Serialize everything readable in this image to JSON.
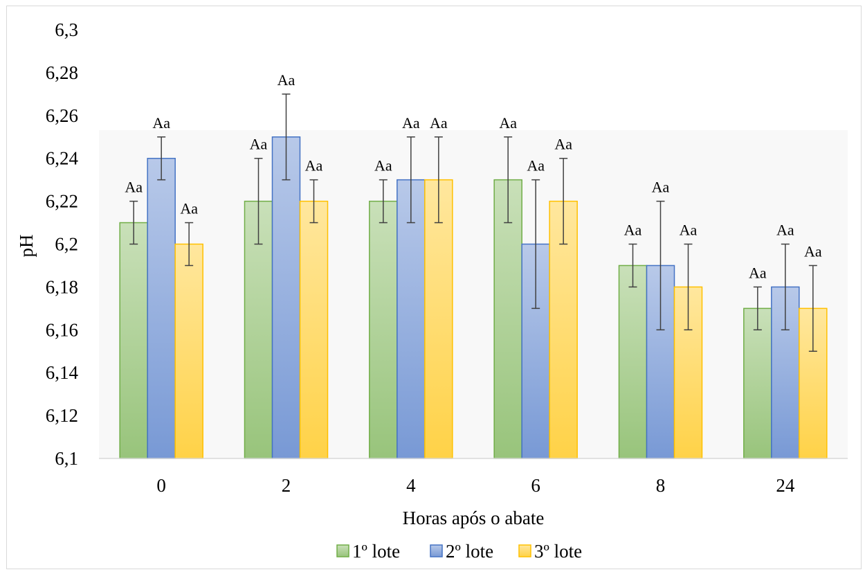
{
  "chart_data": {
    "type": "bar",
    "title": "",
    "xlabel": "Horas após o abate",
    "ylabel": "pH",
    "categories": [
      "0",
      "2",
      "4",
      "6",
      "8",
      "24"
    ],
    "ylim": [
      6.1,
      6.3
    ],
    "yticks": [
      6.1,
      6.12,
      6.14,
      6.16,
      6.18,
      6.2,
      6.22,
      6.24,
      6.26,
      6.28,
      6.3
    ],
    "ytick_labels": [
      "6,1",
      "6,12",
      "6,14",
      "6,16",
      "6,18",
      "6,2",
      "6,22",
      "6,24",
      "6,26",
      "6,28",
      "6,3"
    ],
    "grid": false,
    "legend_position": "bottom",
    "series": [
      {
        "name": "1º lote",
        "color": "#70ad47",
        "values": [
          6.21,
          6.22,
          6.22,
          6.23,
          6.19,
          6.17
        ],
        "error_low": [
          6.2,
          6.2,
          6.21,
          6.21,
          6.18,
          6.16
        ],
        "error_high": [
          6.22,
          6.24,
          6.23,
          6.25,
          6.2,
          6.18
        ],
        "labels": [
          "Aa",
          "Aa",
          "Aa",
          "Aa",
          "Aa",
          "Aa"
        ]
      },
      {
        "name": "2º lote",
        "color": "#4472c4",
        "values": [
          6.24,
          6.25,
          6.23,
          6.2,
          6.19,
          6.18
        ],
        "error_low": [
          6.23,
          6.23,
          6.21,
          6.17,
          6.16,
          6.16
        ],
        "error_high": [
          6.25,
          6.27,
          6.25,
          6.23,
          6.22,
          6.2
        ],
        "labels": [
          "Aa",
          "Aa",
          "Aa",
          "Aa",
          "Aa",
          "Aa"
        ]
      },
      {
        "name": "3º lote",
        "color": "#ffc000",
        "values": [
          6.2,
          6.22,
          6.23,
          6.22,
          6.18,
          6.17
        ],
        "error_low": [
          6.19,
          6.21,
          6.21,
          6.2,
          6.16,
          6.15
        ],
        "error_high": [
          6.21,
          6.23,
          6.25,
          6.24,
          6.2,
          6.19
        ],
        "labels": [
          "Aa",
          "Aa",
          "Aa",
          "Aa",
          "Aa",
          "Aa"
        ]
      }
    ]
  }
}
